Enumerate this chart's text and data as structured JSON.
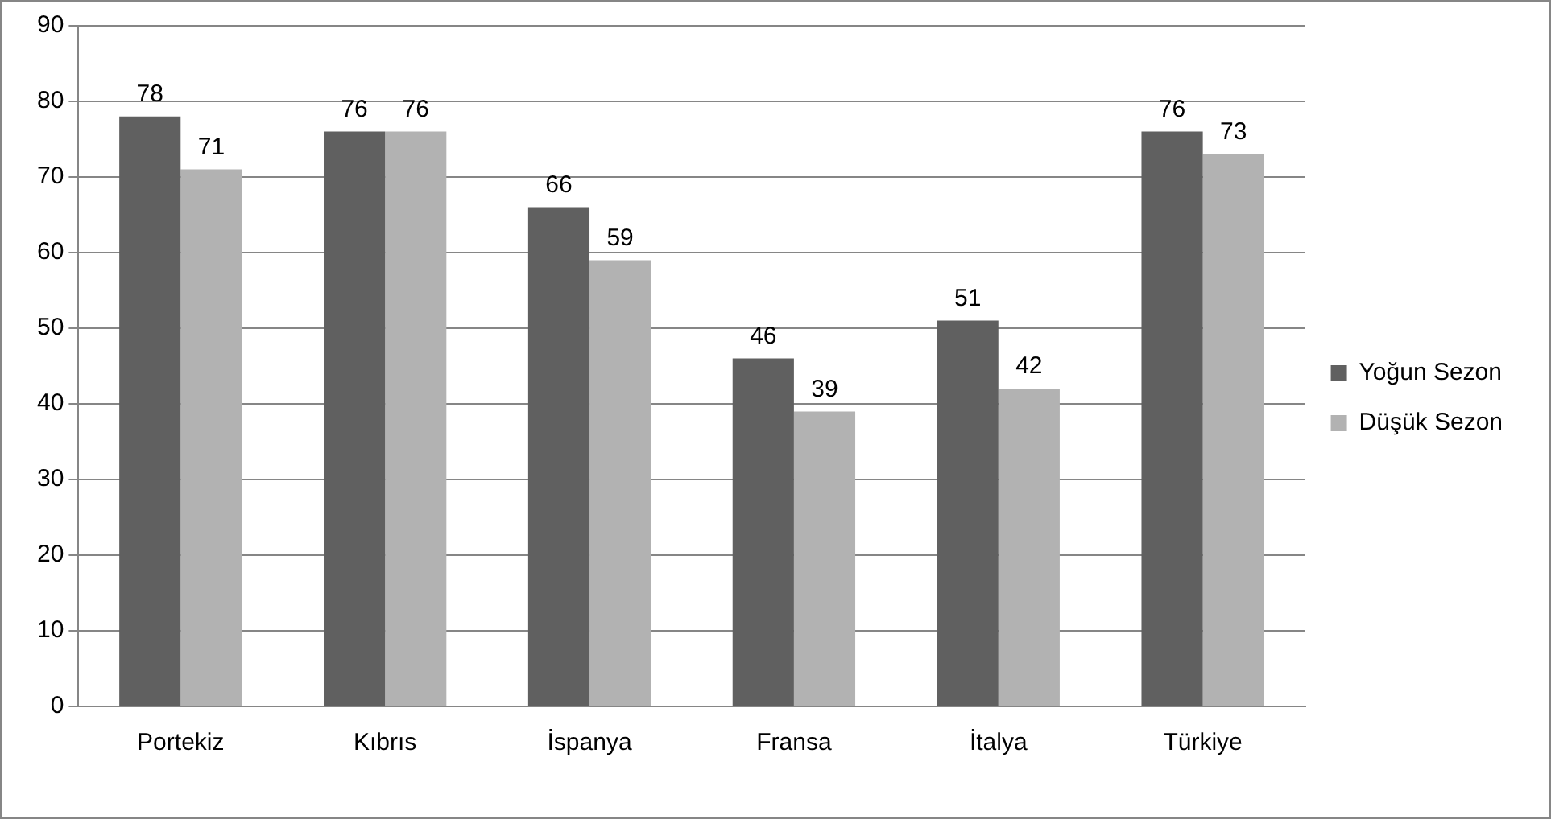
{
  "chart_data": {
    "type": "bar",
    "categories": [
      "Portekiz",
      "Kıbrıs",
      "İspanya",
      "Fransa",
      "İtalya",
      "Türkiye"
    ],
    "series": [
      {
        "name": "Yoğun Sezon",
        "color": "#606060",
        "values": [
          78,
          76,
          66,
          46,
          51,
          76
        ]
      },
      {
        "name": "Düşük Sezon",
        "color": "#b2b2b2",
        "values": [
          71,
          76,
          59,
          39,
          42,
          73
        ]
      }
    ],
    "ylim": [
      0,
      90
    ],
    "yticks": [
      0,
      10,
      20,
      30,
      40,
      50,
      60,
      70,
      80,
      90
    ],
    "grid": "y",
    "legend": "right",
    "data_labels": true
  }
}
